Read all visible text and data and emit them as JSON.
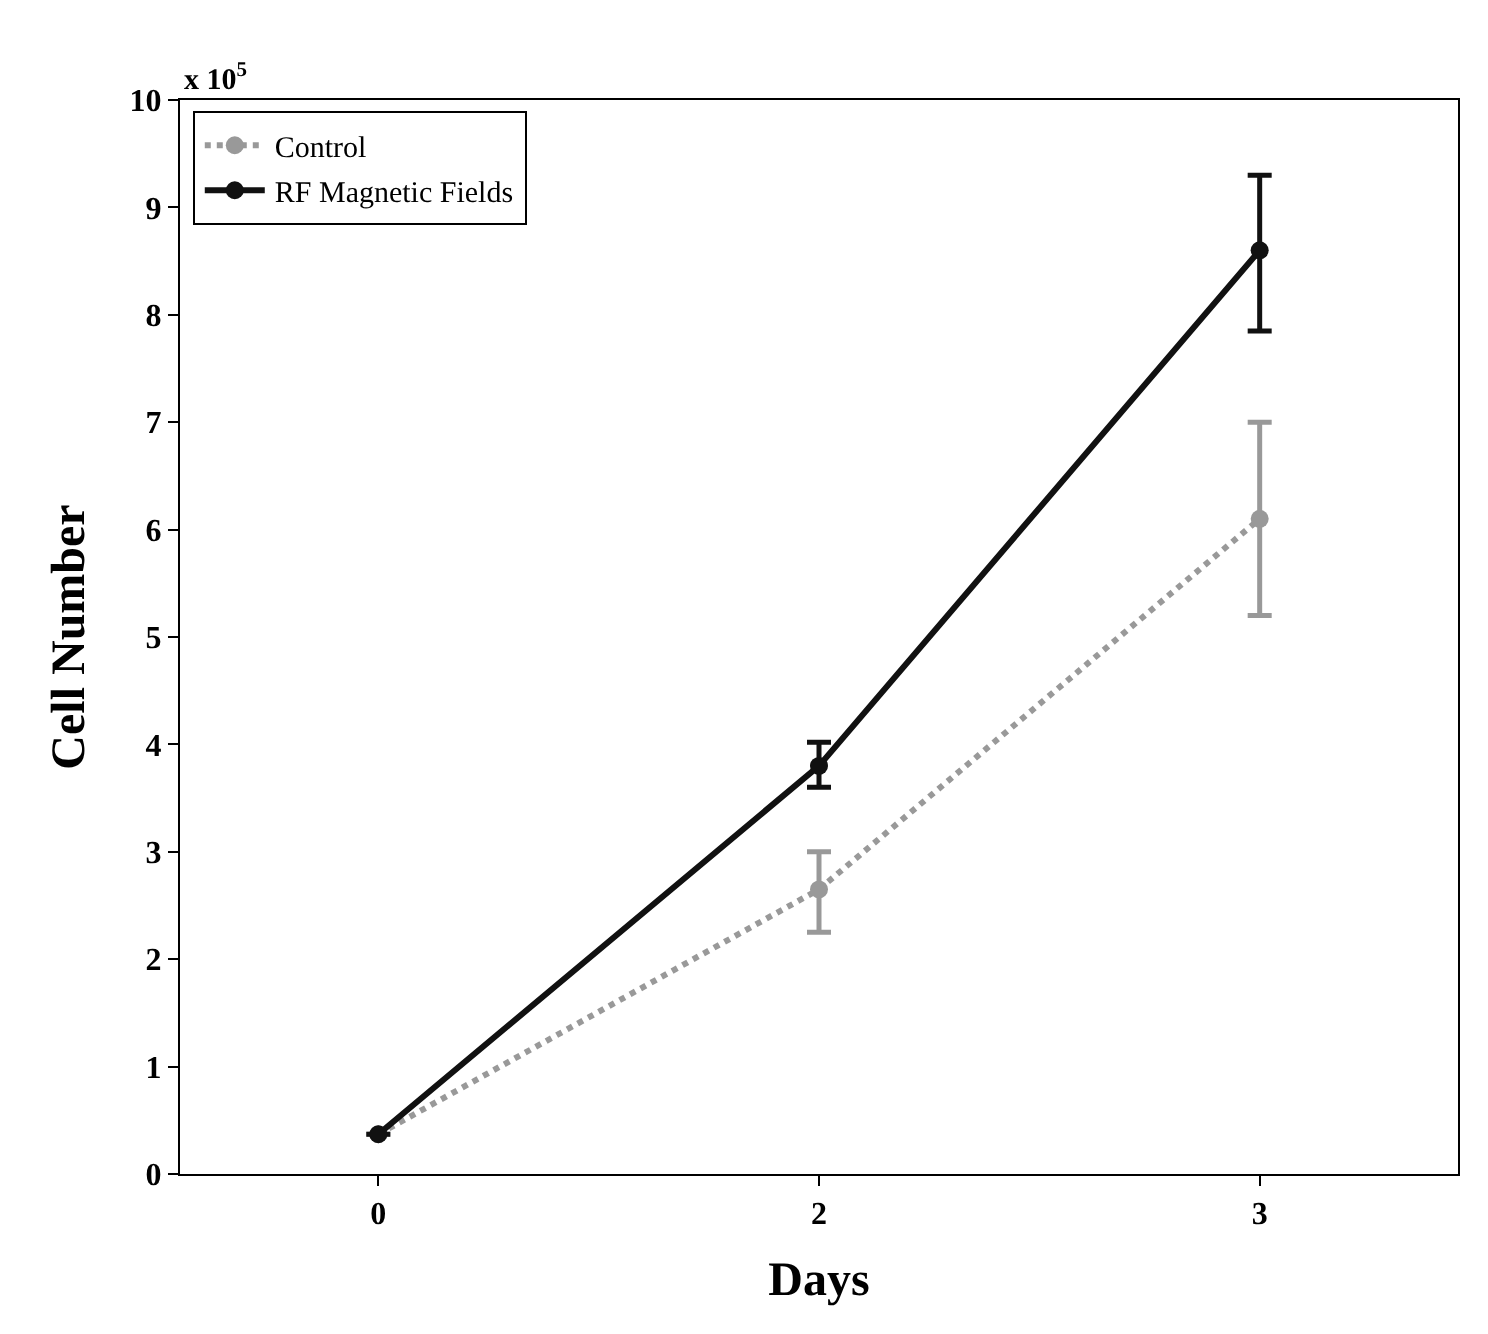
{
  "chart_data": {
    "type": "line",
    "xlabel": "Days",
    "ylabel": "Cell Number",
    "categories": [
      "0",
      "2",
      "3"
    ],
    "ylim": [
      0,
      10
    ],
    "yticks": [
      0,
      1,
      2,
      3,
      4,
      5,
      6,
      7,
      8,
      9,
      10
    ],
    "legend": "top left",
    "marker": "circle",
    "annotations": [
      "x 10$^{5}$"
    ],
    "series": [
      {
        "name": "Control",
        "color": "#999999",
        "line_style": "dotted",
        "values": [
          0.37,
          2.65,
          6.1
        ],
        "errors": [
          null,
          [
            2.25,
            3.0
          ],
          [
            5.2,
            7.0
          ]
        ]
      },
      {
        "name": "RF Magnetic Fields",
        "color": "#111111",
        "line_style": "solid",
        "values": [
          0.37,
          3.8,
          8.6
        ],
        "errors": [
          null,
          [
            3.6,
            4.02
          ],
          [
            7.85,
            9.3
          ]
        ]
      }
    ]
  }
}
